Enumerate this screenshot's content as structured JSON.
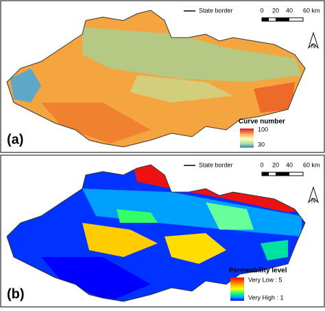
{
  "panels": [
    {
      "label": "(a)",
      "border_legend": "State border",
      "scale": [
        "0",
        "20",
        "40",
        "60 km"
      ],
      "north": "N",
      "legend": {
        "title": "Curve number",
        "max": "100",
        "min": "30"
      }
    },
    {
      "label": "(b)",
      "border_legend": "State border",
      "scale": [
        "0",
        "20",
        "40",
        "60 km"
      ],
      "north": "N",
      "legend": {
        "title": "Permeability level",
        "max": "Very Low : 5",
        "min": "Very High : 1"
      }
    }
  ]
}
